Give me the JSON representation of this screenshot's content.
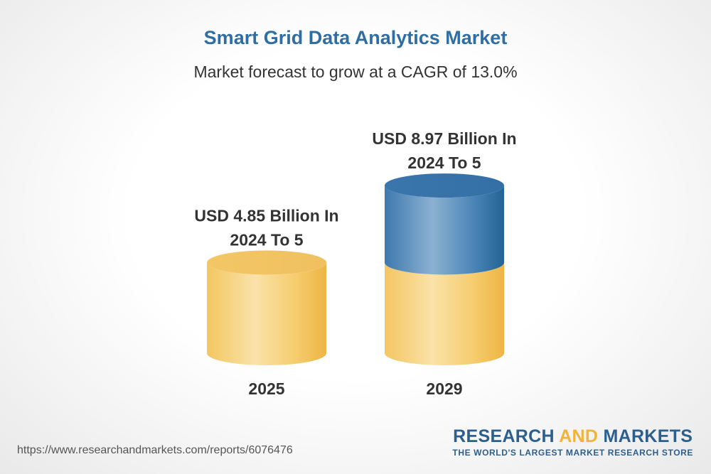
{
  "chart_data": {
    "type": "bar",
    "title": "Smart Grid Data Analytics Market",
    "subtitle": "Market forecast to grow at a CAGR of 13.0%",
    "categories": [
      "2025",
      "2029"
    ],
    "values": [
      4.85,
      8.97
    ],
    "data_labels": [
      [
        "USD 4.85 Billion In",
        "2024 To 5"
      ],
      [
        "USD 8.97 Billion In",
        "2024 To 5"
      ]
    ],
    "unit": "USD Billion",
    "xlabel": "",
    "ylabel": "",
    "grid": false,
    "legend": "none",
    "style": "3d-cylinder",
    "colors": {
      "base": "#f2c35a",
      "growth": "#2f6ea3",
      "text": "#333333",
      "title": "#2f6ea3"
    }
  },
  "footer": {
    "url": "https://www.researchandmarkets.com/reports/6076476"
  },
  "brand": {
    "word1": "RESEARCH",
    "word2": "AND",
    "word3": "MARKETS",
    "tagline": "THE WORLD'S LARGEST MARKET RESEARCH STORE"
  }
}
